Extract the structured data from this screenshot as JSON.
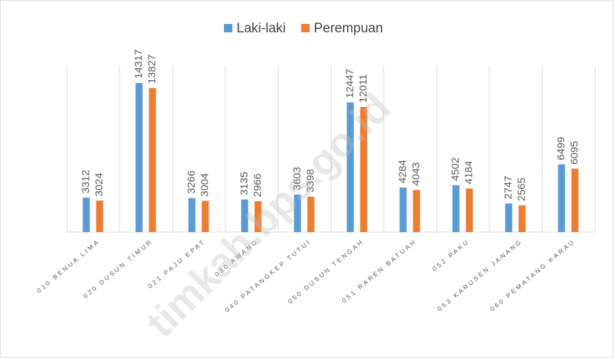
{
  "chart_data": {
    "type": "bar",
    "categories": [
      "010  BENUA LIMA",
      "020  DUSUN TIMUR",
      "021  PAJU EPAT",
      "030  AWANG",
      "040  PATANGKEP TUTUI",
      "050  DUSUN TENGAH",
      "051  RAREN BATUAH",
      "052  PAKU",
      "053  KARUSEN JANANG",
      "060  PEMATANG KARAU"
    ],
    "series": [
      {
        "name": "Laki-laki",
        "color": "#5b9bd5",
        "values": [
          3312,
          14317,
          3266,
          3135,
          3603,
          12447,
          4284,
          4502,
          2747,
          6499
        ]
      },
      {
        "name": "Perempuan",
        "color": "#ed7d31",
        "values": [
          3024,
          13827,
          3004,
          2966,
          3398,
          12011,
          4043,
          4184,
          2565,
          6095
        ]
      }
    ],
    "ylim": [
      0,
      16000
    ],
    "legend": "top",
    "watermark": "timkab.bps.go.id"
  }
}
